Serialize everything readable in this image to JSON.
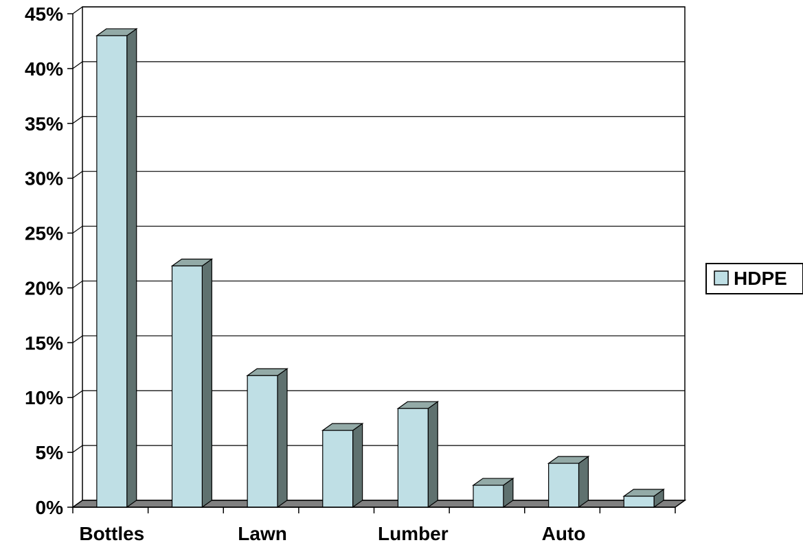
{
  "chart_data": {
    "type": "bar",
    "title": "",
    "xlabel": "",
    "ylabel": "",
    "categories": [
      "Bottles",
      "",
      "Lawn",
      "",
      "Lumber",
      "",
      "Auto",
      ""
    ],
    "series": [
      {
        "name": "HDPE",
        "values": [
          43,
          22,
          12,
          7,
          9,
          2,
          4,
          1
        ]
      }
    ],
    "ylim": [
      0,
      45
    ],
    "yticks": [
      0,
      5,
      10,
      15,
      20,
      25,
      30,
      35,
      40,
      45
    ],
    "ytick_labels": [
      "0%",
      "5%",
      "10%",
      "15%",
      "20%",
      "25%",
      "30%",
      "35%",
      "40%",
      "45%"
    ],
    "grid": true,
    "legend_position": "right",
    "colors": {
      "bar_front": "#bfdfe5",
      "bar_side": "#5f716f",
      "bar_top": "#93aaa7",
      "floor": "#808080",
      "grid": "#000000"
    }
  }
}
